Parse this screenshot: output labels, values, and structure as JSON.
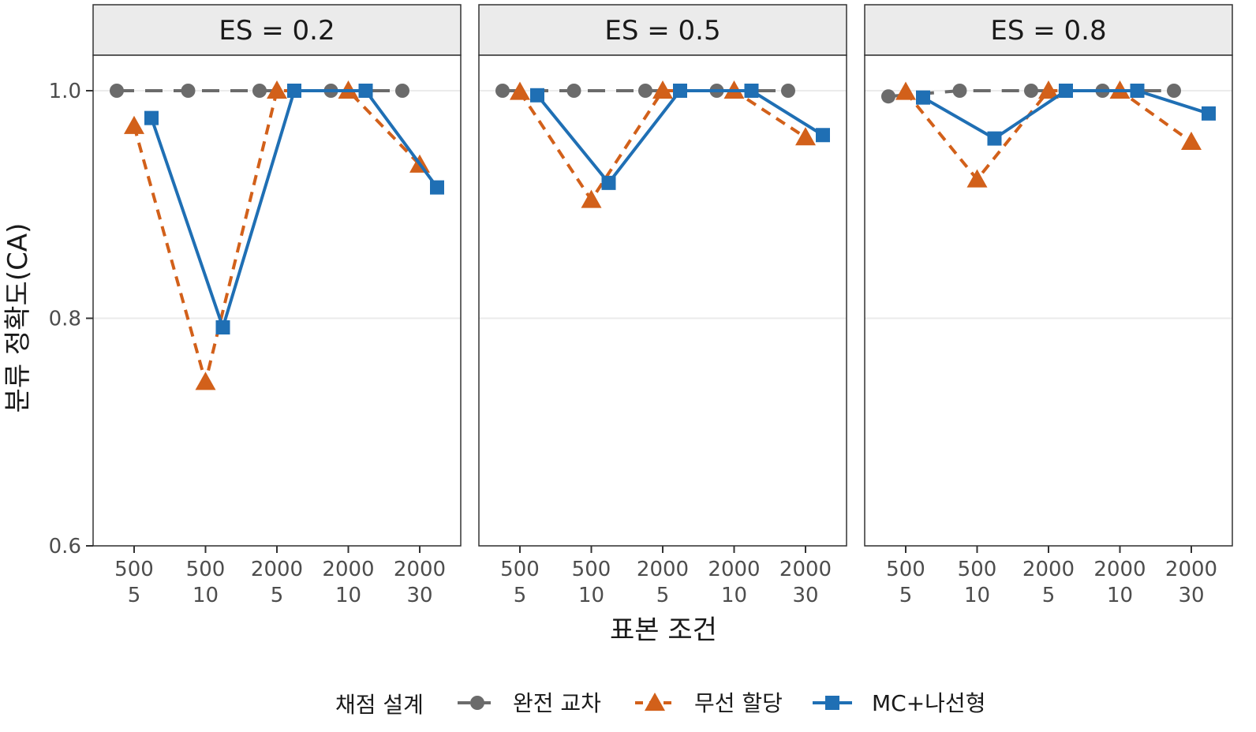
{
  "chart_data": {
    "type": "line",
    "xlabel": "표본 조건",
    "ylabel": "분류 정확도(CA)",
    "ylim": [
      0.6,
      1.04
    ],
    "yticks": [
      0.6,
      0.8,
      1.0
    ],
    "ytick_labels": [
      "0.6",
      "0.8",
      "1.0"
    ],
    "categories": [
      {
        "line1": "500",
        "line2": "5"
      },
      {
        "line1": "500",
        "line2": "10"
      },
      {
        "line1": "2000",
        "line2": "5"
      },
      {
        "line1": "2000",
        "line2": "10"
      },
      {
        "line1": "2000",
        "line2": "30"
      }
    ],
    "grid": true,
    "legend": {
      "position": "bottom",
      "title": "채점 설계"
    },
    "series_styles": [
      {
        "name": "완전 교차",
        "color": "#6b6b6b",
        "marker": "circle",
        "dash": "dashed-long"
      },
      {
        "name": "무선 할당",
        "color": "#d2601a",
        "marker": "triangle",
        "dash": "dashed"
      },
      {
        "name": "MC+나선형",
        "color": "#1f6fb4",
        "marker": "square",
        "dash": "solid"
      }
    ],
    "panels": [
      {
        "label": "ES = 0.2",
        "series": [
          {
            "name": "완전 교차",
            "values": [
              1.0,
              1.0,
              1.0,
              1.0,
              1.0
            ]
          },
          {
            "name": "무선 할당",
            "values": [
              0.969,
              0.744,
              1.0,
              1.0,
              0.935
            ]
          },
          {
            "name": "MC+나선형",
            "values": [
              0.976,
              0.792,
              1.0,
              1.0,
              0.915
            ]
          }
        ]
      },
      {
        "label": "ES = 0.5",
        "series": [
          {
            "name": "완전 교차",
            "values": [
              1.0,
              1.0,
              1.0,
              1.0,
              1.0
            ]
          },
          {
            "name": "무선 할당",
            "values": [
              0.999,
              0.904,
              1.0,
              1.0,
              0.959
            ]
          },
          {
            "name": "MC+나선형",
            "values": [
              0.996,
              0.919,
              1.0,
              1.0,
              0.961
            ]
          }
        ]
      },
      {
        "label": "ES = 0.8",
        "series": [
          {
            "name": "완전 교차",
            "values": [
              0.995,
              1.0,
              1.0,
              1.0,
              1.0
            ]
          },
          {
            "name": "무선 할당",
            "values": [
              0.999,
              0.922,
              1.0,
              1.0,
              0.955
            ]
          },
          {
            "name": "MC+나선형",
            "values": [
              0.994,
              0.958,
              1.0,
              1.0,
              0.98
            ]
          }
        ]
      }
    ]
  }
}
